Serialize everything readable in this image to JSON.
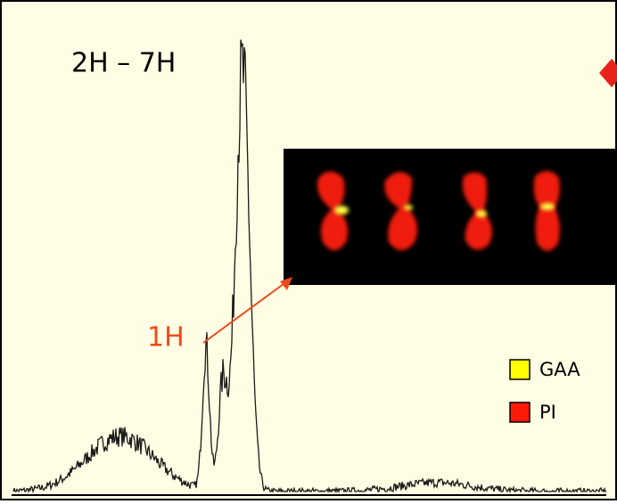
{
  "labels": {
    "peak_group": "2H – 7H",
    "peak_1h": "1H"
  },
  "legend": [
    {
      "name": "GAA",
      "color": "#ffff00"
    },
    {
      "name": "PI",
      "color": "#ff1a0a"
    }
  ]
}
